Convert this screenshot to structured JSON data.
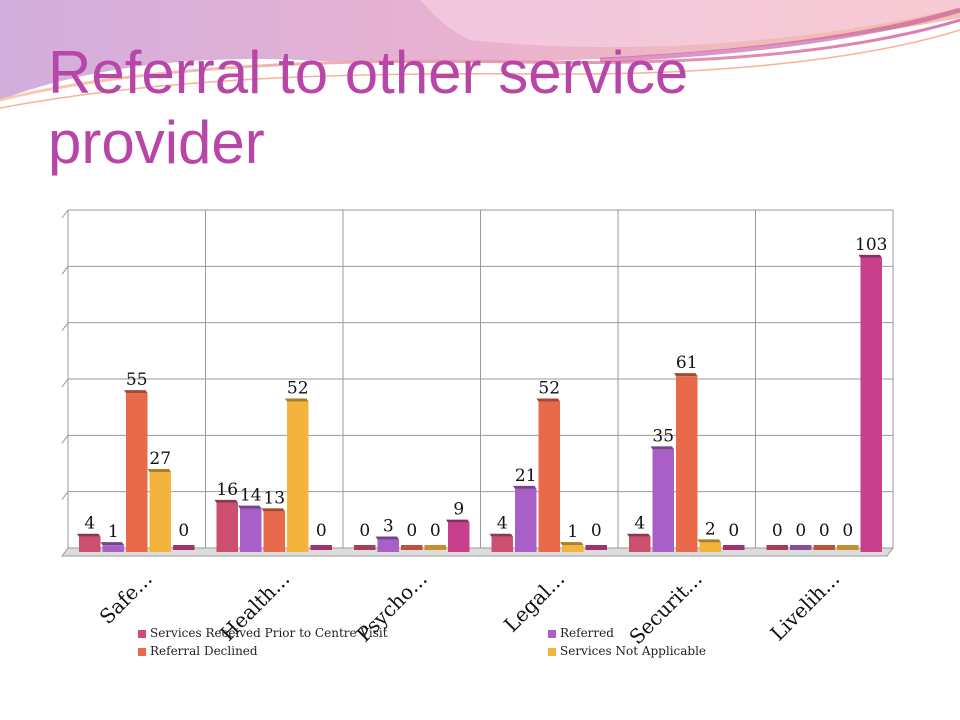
{
  "slide": {
    "title": "Referral to other service provider"
  },
  "colors": {
    "title": "#b846a8",
    "series": [
      "#cc4f6f",
      "#a860c8",
      "#e86a4a",
      "#f2b43c",
      "#c83f8c"
    ]
  },
  "chart_data": {
    "type": "bar",
    "style": "3d-clustered-column",
    "title": "",
    "xlabel": "",
    "ylabel": "",
    "ylim": [
      0,
      120
    ],
    "grid": true,
    "legend_position": "bottom",
    "categories": [
      "Safe...",
      "Health...",
      "Psycho...",
      "Legal...",
      "Securit...",
      "Livelih..."
    ],
    "series": [
      {
        "name": "Services Received Prior to Centre Visit",
        "values": [
          4,
          16,
          0,
          4,
          4,
          0
        ]
      },
      {
        "name": "Referred",
        "values": [
          1,
          14,
          3,
          21,
          35,
          0
        ]
      },
      {
        "name": "Referral Declined",
        "values": [
          55,
          13,
          0,
          52,
          61,
          0
        ]
      },
      {
        "name": "Services Not Applicable",
        "values": [
          27,
          52,
          0,
          1,
          2,
          0
        ]
      },
      {
        "name": "",
        "values": [
          0,
          0,
          9,
          0,
          0,
          103
        ]
      }
    ],
    "legend": [
      "Services Received Prior to Centre Visit",
      "Referred",
      "Referral Declined",
      "Services Not Applicable"
    ]
  }
}
